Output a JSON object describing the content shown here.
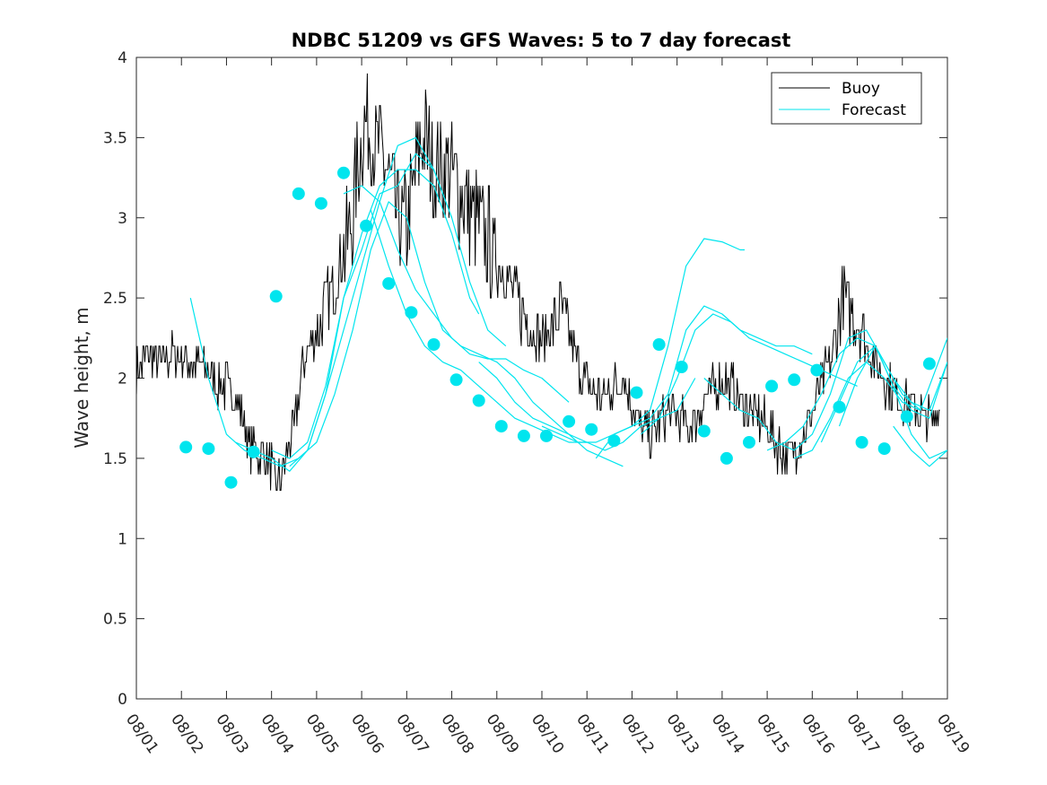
{
  "chart_data": {
    "type": "line",
    "title": "NDBC 51209 vs GFS Waves: 5 to 7 day forecast",
    "xlabel": "",
    "ylabel": "Wave height, m",
    "xlim": [
      0,
      18
    ],
    "ylim": [
      0,
      4
    ],
    "yticks": [
      0,
      0.5,
      1,
      1.5,
      2,
      2.5,
      3,
      3.5,
      4
    ],
    "ytick_labels": [
      "0",
      "0.5",
      "1",
      "1.5",
      "2",
      "2.5",
      "3",
      "3.5",
      "4"
    ],
    "xtick_labels": [
      "08/01",
      "08/02",
      "08/03",
      "08/04",
      "08/05",
      "08/06",
      "08/07",
      "08/08",
      "08/09",
      "08/10",
      "08/11",
      "08/12",
      "08/13",
      "08/14",
      "08/15",
      "08/16",
      "08/17",
      "08/18",
      "08/19"
    ],
    "legend": {
      "position": "top-right",
      "entries": [
        {
          "label": "Buoy",
          "color": "#000000"
        },
        {
          "label": "Forecast",
          "color": "#00e5ee"
        }
      ]
    },
    "colors": {
      "buoy": "#000000",
      "forecast": "#00e5ee",
      "axis": "#262626"
    },
    "buoy_anchor_points": {
      "x": [
        0.0,
        0.3,
        0.6,
        0.9,
        1.2,
        1.5,
        1.6,
        1.7,
        1.8,
        2.0,
        2.2,
        2.4,
        2.5,
        2.6,
        2.8,
        3.0,
        3.1,
        3.2,
        3.3,
        3.4,
        3.5,
        3.6,
        3.7,
        3.8,
        3.9,
        4.0,
        4.2,
        4.4,
        4.6,
        4.7,
        4.8,
        4.9,
        5.0,
        5.1,
        5.2,
        5.3,
        5.5,
        5.6,
        5.7,
        5.8,
        5.9,
        6.0,
        6.1,
        6.2,
        6.3,
        6.4,
        6.5,
        6.6,
        6.7,
        6.8,
        6.9,
        7.0,
        7.1,
        7.2,
        7.3,
        7.4,
        7.5,
        7.6,
        7.7,
        7.8,
        7.9,
        8.0,
        8.2,
        8.4,
        8.6,
        8.8,
        9.0,
        9.2,
        9.4,
        9.6,
        9.7,
        9.8,
        9.9,
        10.0,
        10.2,
        10.4,
        10.6,
        10.8,
        11.0,
        11.2,
        11.4,
        11.6,
        11.7,
        11.8,
        12.0,
        12.2,
        12.4,
        12.6,
        12.8,
        13.0,
        13.2,
        13.4,
        13.6,
        13.8,
        14.0,
        14.2,
        14.3,
        14.5,
        14.7,
        14.9,
        15.1,
        15.3,
        15.5,
        15.6,
        15.7,
        15.9,
        16.1,
        16.3,
        16.5,
        16.6,
        16.7,
        16.9,
        17.1,
        17.3,
        17.5,
        17.7,
        17.9,
        18.0
      ],
      "y": [
        2.05,
        2.15,
        2.1,
        2.15,
        2.1,
        2.05,
        2.05,
        2.0,
        1.95,
        1.95,
        1.9,
        1.7,
        1.6,
        1.55,
        1.5,
        1.45,
        1.35,
        1.35,
        1.5,
        1.6,
        1.7,
        1.9,
        2.05,
        2.2,
        2.25,
        2.3,
        2.45,
        2.6,
        2.8,
        2.85,
        3.0,
        3.3,
        3.5,
        3.6,
        3.55,
        3.45,
        3.35,
        3.2,
        3.15,
        3.0,
        2.95,
        2.95,
        3.1,
        3.3,
        3.45,
        3.5,
        3.4,
        3.3,
        3.3,
        3.3,
        3.3,
        3.25,
        3.2,
        3.15,
        3.1,
        3.05,
        3.0,
        2.95,
        2.9,
        2.85,
        2.8,
        2.75,
        2.65,
        2.5,
        2.4,
        2.3,
        2.25,
        2.3,
        2.4,
        2.3,
        2.2,
        2.1,
        2.0,
        1.95,
        1.9,
        1.9,
        1.95,
        2.0,
        1.85,
        1.7,
        1.65,
        1.7,
        1.75,
        1.8,
        1.75,
        1.7,
        1.75,
        1.85,
        1.95,
        2.0,
        1.95,
        1.85,
        1.8,
        1.75,
        1.7,
        1.6,
        1.55,
        1.5,
        1.6,
        1.7,
        1.85,
        2.05,
        2.2,
        2.4,
        2.5,
        2.4,
        2.3,
        2.15,
        2.05,
        2.0,
        1.95,
        1.9,
        1.85,
        1.8,
        1.75,
        1.75,
        1.9,
        2.0
      ]
    },
    "forecast_lines": [
      {
        "x": [
          1.2,
          1.6,
          2.0,
          2.4,
          2.8,
          3.2,
          3.6,
          4.0,
          4.4,
          4.8,
          5.2,
          5.6,
          6.0
        ],
        "y": [
          2.5,
          2.0,
          1.65,
          1.55,
          1.5,
          1.45,
          1.5,
          1.6,
          1.9,
          2.3,
          2.8,
          3.1,
          3.0
        ]
      },
      {
        "x": [
          2.2,
          2.6,
          3.0,
          3.4,
          3.8,
          4.2,
          4.6,
          5.0,
          5.4,
          5.8,
          6.2,
          6.6,
          7.0
        ],
        "y": [
          1.6,
          1.55,
          1.5,
          1.42,
          1.55,
          1.9,
          2.5,
          2.8,
          3.15,
          3.2,
          3.4,
          3.3,
          3.0
        ]
      },
      {
        "x": [
          3.0,
          3.4,
          3.8,
          4.2,
          4.6,
          5.0,
          5.4,
          5.8,
          6.2,
          6.6,
          7.0,
          7.4,
          7.6
        ],
        "y": [
          1.55,
          1.5,
          1.6,
          1.95,
          2.5,
          2.9,
          3.2,
          3.3,
          3.3,
          3.2,
          2.9,
          2.5,
          2.4
        ]
      },
      {
        "x": [
          3.4,
          3.8,
          4.2,
          4.6,
          5.0,
          5.4,
          5.8,
          6.2,
          6.6,
          7.0,
          7.4,
          7.8,
          8.2
        ],
        "y": [
          1.45,
          1.55,
          1.9,
          2.3,
          2.7,
          3.1,
          3.45,
          3.5,
          3.3,
          3.0,
          2.6,
          2.3,
          2.2
        ]
      },
      {
        "x": [
          4.6,
          5.0,
          5.4,
          5.8,
          6.2,
          6.6,
          7.0,
          7.4,
          7.8,
          8.2,
          8.6,
          9.0,
          9.6
        ],
        "y": [
          3.15,
          3.2,
          3.1,
          2.8,
          2.55,
          2.4,
          2.25,
          2.15,
          2.12,
          2.12,
          2.05,
          2.0,
          1.85
        ]
      },
      {
        "x": [
          5.2,
          5.6,
          6.0,
          6.4,
          6.8,
          7.2,
          7.6,
          8.0,
          8.4,
          8.8,
          9.2,
          9.6,
          10.0
        ],
        "y": [
          3.05,
          2.7,
          2.4,
          2.2,
          2.1,
          2.05,
          1.95,
          1.85,
          1.75,
          1.7,
          1.65,
          1.6,
          1.6
        ]
      },
      {
        "x": [
          6.0,
          6.4,
          6.8,
          7.2,
          7.6,
          8.0,
          8.4,
          8.8,
          9.2,
          9.6,
          10.0,
          10.4,
          10.8
        ],
        "y": [
          3.0,
          2.6,
          2.3,
          2.2,
          2.15,
          2.1,
          2.0,
          1.85,
          1.75,
          1.65,
          1.55,
          1.5,
          1.45
        ]
      },
      {
        "x": [
          7.6,
          8.0,
          8.4,
          8.8,
          9.2,
          9.6,
          10.0,
          10.4,
          10.8,
          11.2,
          11.6,
          12.0,
          12.4
        ],
        "y": [
          2.1,
          2.0,
          1.85,
          1.75,
          1.7,
          1.65,
          1.6,
          1.55,
          1.6,
          1.7,
          1.75,
          1.8,
          2.0
        ]
      },
      {
        "x": [
          9.0,
          9.4,
          9.8,
          10.2,
          10.6,
          11.0,
          11.4,
          11.8,
          12.2,
          12.6,
          13.0,
          13.4,
          13.5
        ],
        "y": [
          1.7,
          1.65,
          1.6,
          1.6,
          1.65,
          1.7,
          1.8,
          2.2,
          2.7,
          2.87,
          2.85,
          2.8,
          2.8
        ]
      },
      {
        "x": [
          10.2,
          10.6,
          11.0,
          11.4,
          11.8,
          12.2,
          12.6,
          13.0,
          13.4,
          13.8,
          14.2,
          14.6,
          15.0
        ],
        "y": [
          1.5,
          1.65,
          1.7,
          1.75,
          1.9,
          2.3,
          2.45,
          2.4,
          2.3,
          2.25,
          2.2,
          2.2,
          2.15
        ]
      },
      {
        "x": [
          11.2,
          11.6,
          12.0,
          12.4,
          12.8,
          13.2,
          13.6,
          14.0,
          14.4,
          14.8,
          15.2,
          15.6,
          16.0
        ],
        "y": [
          1.65,
          1.75,
          2.0,
          2.3,
          2.4,
          2.35,
          2.25,
          2.2,
          2.15,
          2.1,
          2.05,
          2.0,
          1.95
        ]
      },
      {
        "x": [
          12.6,
          13.0,
          13.4,
          13.8,
          14.2,
          14.6,
          15.0,
          15.4,
          15.8,
          16.2,
          16.6,
          17.0,
          17.4
        ],
        "y": [
          2.0,
          1.9,
          1.8,
          1.75,
          1.6,
          1.55,
          1.65,
          1.9,
          2.25,
          2.3,
          2.1,
          1.9,
          1.8
        ]
      },
      {
        "x": [
          14.0,
          14.4,
          14.8,
          15.2,
          15.6,
          16.0,
          16.4,
          16.8,
          17.2,
          17.6,
          18.0
        ],
        "y": [
          1.55,
          1.6,
          1.7,
          1.9,
          2.15,
          2.25,
          2.2,
          2.0,
          1.85,
          1.8,
          2.1
        ]
      },
      {
        "x": [
          14.6,
          15.0,
          15.4,
          15.8,
          16.2,
          16.6,
          17.0,
          17.4,
          17.8,
          18.0
        ],
        "y": [
          1.5,
          1.55,
          1.75,
          2.0,
          2.1,
          2.0,
          1.85,
          1.8,
          2.1,
          2.25
        ]
      },
      {
        "x": [
          15.2,
          15.6,
          16.0,
          16.4,
          16.8,
          17.2,
          17.6,
          18.0
        ],
        "y": [
          1.6,
          1.85,
          2.1,
          2.2,
          1.95,
          1.8,
          1.75,
          2.1
        ]
      },
      {
        "x": [
          15.6,
          16.0,
          16.4,
          16.8,
          17.2,
          17.6,
          18.0
        ],
        "y": [
          1.7,
          2.0,
          2.2,
          1.95,
          1.65,
          1.5,
          1.55
        ]
      },
      {
        "x": [
          16.8,
          17.2,
          17.6,
          18.0
        ],
        "y": [
          1.7,
          1.55,
          1.45,
          1.55
        ]
      }
    ],
    "forecast_points": {
      "x": [
        1.1,
        1.6,
        2.1,
        2.6,
        3.1,
        3.6,
        4.1,
        4.6,
        5.1,
        5.6,
        6.1,
        6.6,
        7.1,
        7.6,
        8.1,
        8.6,
        9.1,
        9.6,
        10.1,
        10.6,
        11.1,
        11.6,
        12.1,
        12.6,
        13.1,
        13.6,
        14.1,
        14.6,
        15.1,
        15.6,
        16.1,
        16.6,
        17.1,
        17.6
      ],
      "y": [
        1.57,
        1.56,
        1.35,
        1.54,
        2.51,
        3.15,
        3.09,
        3.28,
        2.95,
        2.59,
        2.41,
        2.21,
        1.99,
        1.86,
        1.7,
        1.64,
        1.64,
        1.73,
        1.68,
        1.61,
        1.91,
        2.21,
        2.07,
        1.67,
        1.5,
        1.6,
        1.95,
        1.99,
        2.05,
        1.82,
        1.6,
        1.56,
        1.76,
        2.09
      ]
    }
  }
}
